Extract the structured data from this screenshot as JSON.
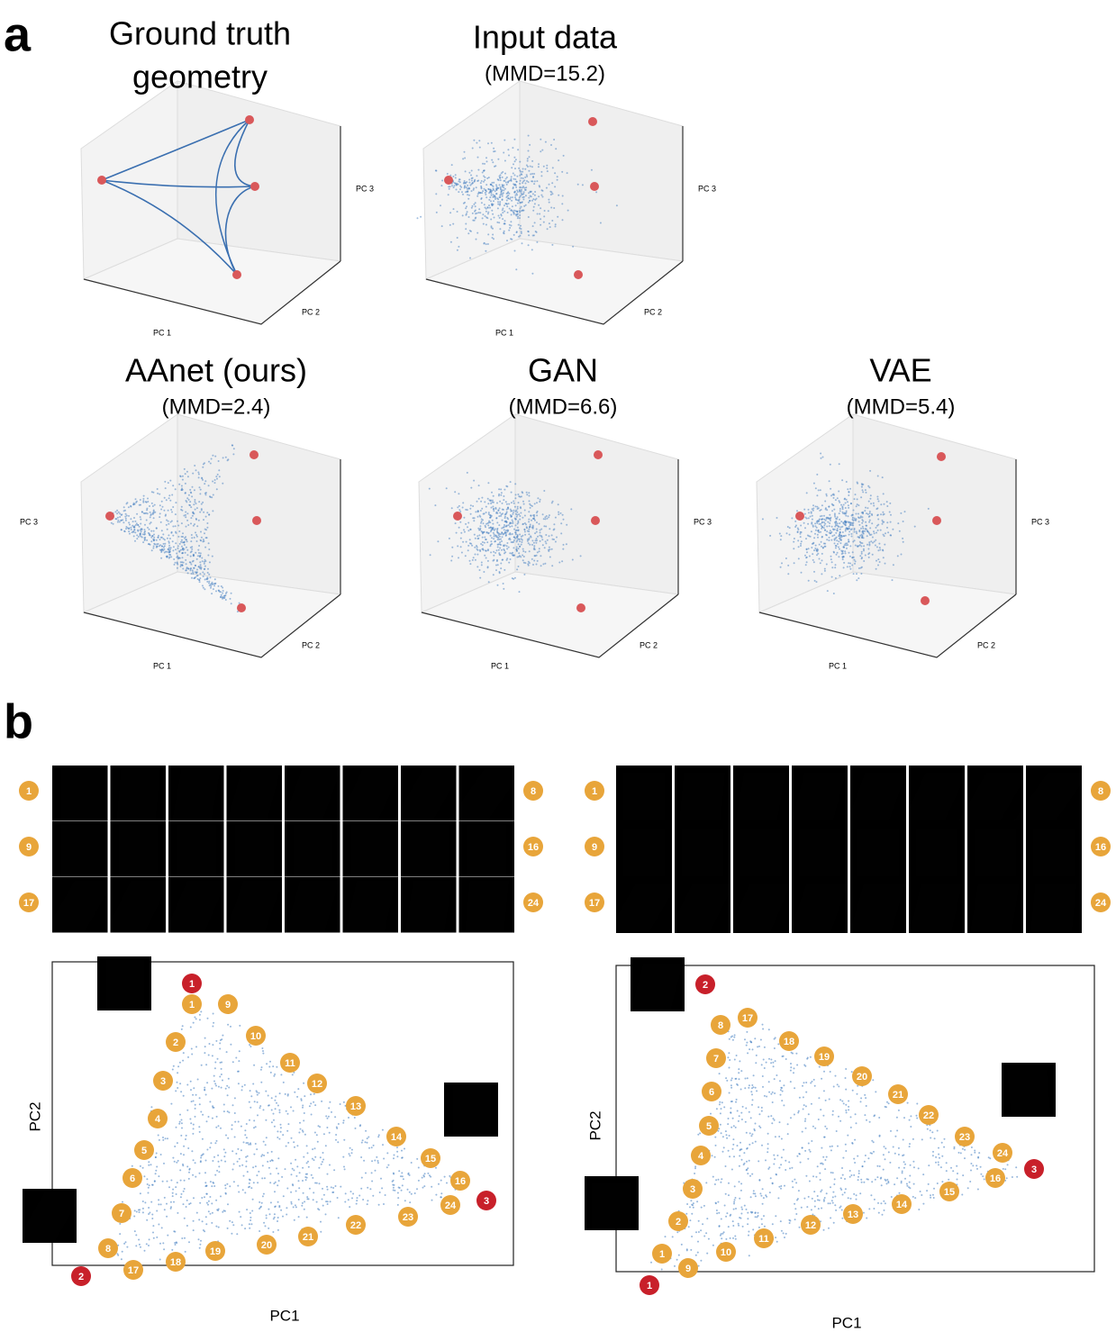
{
  "panel_a": {
    "label": "a",
    "plots": [
      {
        "title_lines": [
          "Ground truth",
          "geometry"
        ],
        "x_label": "PC 1",
        "y_label": "PC 2",
        "z_label": "PC 3"
      },
      {
        "title": "Input data",
        "subtitle": "(MMD=15.2)",
        "x_label": "PC 1",
        "y_label": "PC 2",
        "z_label": "PC 3"
      },
      {
        "title": "AAnet (ours)",
        "subtitle": "(MMD=2.4)",
        "x_label": "PC 1",
        "y_label": "PC 2",
        "z_label": "PC 3"
      },
      {
        "title": "GAN",
        "subtitle": "(MMD=6.6)",
        "x_label": "PC 1",
        "y_label": "PC 2",
        "z_label": "PC 3"
      },
      {
        "title": "VAE",
        "subtitle": "(MMD=5.4)",
        "x_label": "PC 1",
        "y_label": "PC 2",
        "z_label": "PC 3"
      }
    ]
  },
  "panel_b": {
    "label": "b",
    "panels": [
      {
        "row_labels": [
          [
            1,
            8
          ],
          [
            9,
            16
          ],
          [
            17,
            24
          ]
        ],
        "x_label": "PC1",
        "y_label": "PC2",
        "orange_points": [
          1,
          2,
          3,
          4,
          5,
          6,
          7,
          8,
          9,
          10,
          11,
          12,
          13,
          14,
          15,
          16,
          17,
          18,
          19,
          20,
          21,
          22,
          23,
          24
        ],
        "red_points": [
          1,
          2,
          3
        ]
      },
      {
        "row_labels": [
          [
            1,
            8
          ],
          [
            9,
            16
          ],
          [
            17,
            24
          ]
        ],
        "x_label": "PC1",
        "y_label": "PC2",
        "orange_points": [
          1,
          2,
          3,
          4,
          5,
          6,
          7,
          8,
          9,
          10,
          11,
          12,
          13,
          14,
          15,
          16,
          17,
          18,
          19,
          20,
          21,
          22,
          23,
          24
        ],
        "red_points": [
          1,
          2,
          3
        ]
      }
    ]
  }
}
